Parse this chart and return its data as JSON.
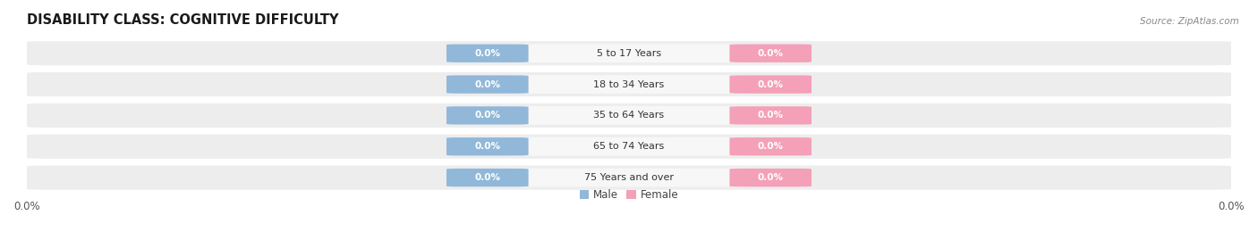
{
  "title": "DISABILITY CLASS: COGNITIVE DIFFICULTY",
  "source": "Source: ZipAtlas.com",
  "categories": [
    "5 to 17 Years",
    "18 to 34 Years",
    "35 to 64 Years",
    "65 to 74 Years",
    "75 Years and over"
  ],
  "male_values": [
    0.0,
    0.0,
    0.0,
    0.0,
    0.0
  ],
  "female_values": [
    0.0,
    0.0,
    0.0,
    0.0,
    0.0
  ],
  "male_color": "#91b8d9",
  "female_color": "#f4a0b8",
  "background_color": "#ffffff",
  "row_bg_color": "#ededee",
  "center_pill_color": "#f7f7f7",
  "title_fontsize": 10.5,
  "legend_fontsize": 8.5,
  "xlim_left": -1.0,
  "xlim_right": 1.0
}
